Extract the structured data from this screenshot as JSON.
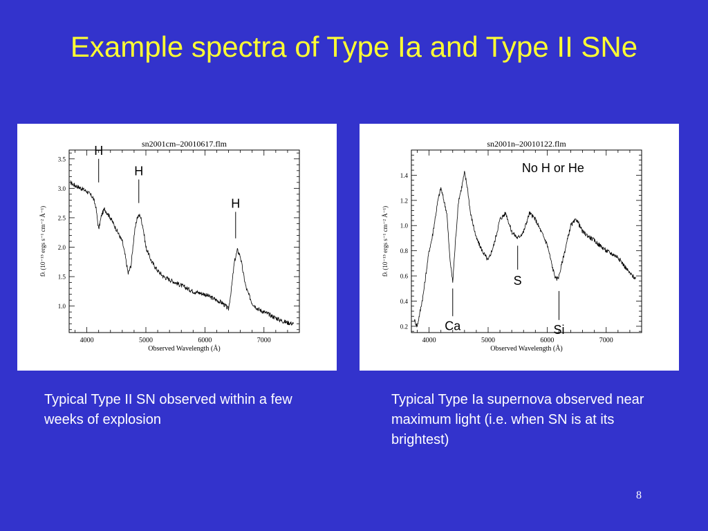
{
  "slide": {
    "title": "Example spectra of Type Ia and Type II SNe",
    "page_number": "8"
  },
  "captions": {
    "left": "Typical Type II SN observed within a few weeks of explosion",
    "right": "Typical Type Ia supernova observed near maximum light (i.e. when SN is at its brightest)"
  },
  "chart_data": [
    {
      "type": "line",
      "title": "sn2001cm–20010617.flm",
      "xlabel": "Observed Wavelength (Å)",
      "ylabel": "fλ (10⁻¹⁵ ergs s⁻¹ cm⁻² Å⁻¹)",
      "xlim": [
        3700,
        7600
      ],
      "ylim": [
        0.55,
        3.65
      ],
      "xticks": [
        4000,
        5000,
        6000,
        7000
      ],
      "yticks": [
        1.0,
        1.5,
        2.0,
        2.5,
        3.0,
        3.5
      ],
      "ytick_labels": [
        "1.0",
        "1.5",
        "2.0",
        "2.5",
        "3.0",
        "3.5"
      ],
      "line_color": "#000000",
      "series": [
        {
          "x": [
            3720,
            3800,
            3900,
            4000,
            4100,
            4150,
            4200,
            4250,
            4300,
            4400,
            4500,
            4600,
            4650,
            4700,
            4750,
            4800,
            4850,
            4900,
            4950,
            5000,
            5100,
            5200,
            5300,
            5400,
            5500,
            5600,
            5800,
            6000,
            6200,
            6300,
            6400,
            6450,
            6500,
            6550,
            6600,
            6650,
            6700,
            6800,
            6900,
            7000,
            7100,
            7200,
            7300,
            7400,
            7500
          ],
          "y": [
            3.1,
            3.05,
            3.0,
            2.95,
            2.85,
            2.7,
            2.3,
            2.55,
            2.65,
            2.5,
            2.3,
            2.1,
            1.85,
            1.55,
            1.7,
            2.2,
            2.5,
            2.55,
            2.35,
            2.0,
            1.75,
            1.6,
            1.5,
            1.45,
            1.4,
            1.35,
            1.25,
            1.2,
            1.1,
            1.05,
            0.95,
            1.3,
            1.75,
            1.95,
            1.85,
            1.55,
            1.3,
            1.05,
            0.95,
            0.9,
            0.85,
            0.8,
            0.75,
            0.72,
            0.7
          ]
        }
      ],
      "annotations": [
        {
          "text": "H",
          "x": 4200,
          "y_top": 3.5,
          "y_bottom": 3.1
        },
        {
          "text": "H",
          "x": 4880,
          "y_top": 3.15,
          "y_bottom": 2.75
        },
        {
          "text": "H",
          "x": 6520,
          "y_top": 2.6,
          "y_bottom": 2.15
        }
      ]
    },
    {
      "type": "line",
      "title": "sn2001n–20010122.flm",
      "xlabel": "Observed Wavelength (Å)",
      "ylabel": "fλ (10⁻¹⁵ ergs s⁻¹ cm⁻² Å⁻¹)",
      "xlim": [
        3700,
        7600
      ],
      "ylim": [
        0.15,
        1.6
      ],
      "xticks": [
        4000,
        5000,
        6000,
        7000
      ],
      "yticks": [
        0.2,
        0.4,
        0.6,
        0.8,
        1.0,
        1.2,
        1.4
      ],
      "ytick_labels": [
        "0.2",
        "0.4",
        "0.6",
        "0.8",
        "1.0",
        "1.2",
        "1.4"
      ],
      "line_color": "#000000",
      "series": [
        {
          "x": [
            3750,
            3800,
            3900,
            4000,
            4050,
            4100,
            4150,
            4200,
            4300,
            4350,
            4400,
            4450,
            4500,
            4550,
            4600,
            4650,
            4700,
            4800,
            4900,
            5000,
            5100,
            5200,
            5300,
            5400,
            5500,
            5600,
            5700,
            5800,
            5900,
            6000,
            6100,
            6150,
            6200,
            6250,
            6300,
            6400,
            6500,
            6600,
            6800,
            7000,
            7200,
            7400,
            7500
          ],
          "y": [
            0.25,
            0.2,
            0.45,
            0.8,
            0.9,
            1.05,
            1.2,
            1.3,
            1.1,
            0.75,
            0.55,
            0.9,
            1.2,
            1.3,
            1.42,
            1.3,
            1.1,
            0.9,
            0.8,
            0.72,
            0.85,
            1.05,
            1.1,
            0.95,
            0.9,
            0.95,
            1.1,
            1.05,
            0.95,
            0.85,
            0.65,
            0.57,
            0.6,
            0.7,
            0.8,
            1.0,
            1.05,
            0.95,
            0.88,
            0.8,
            0.75,
            0.62,
            0.58
          ]
        }
      ],
      "annotations": [
        {
          "text": "No H or He",
          "x": 6100,
          "y_top": null,
          "y_bottom": null
        },
        {
          "text": "S",
          "x": 5500,
          "y_top": 0.84,
          "y_bottom": 0.65
        },
        {
          "text": "Ca",
          "x": 4400,
          "y_top": 0.5,
          "y_bottom": 0.28
        },
        {
          "text": "Si",
          "x": 6200,
          "y_top": 0.48,
          "y_bottom": 0.25
        }
      ]
    }
  ]
}
